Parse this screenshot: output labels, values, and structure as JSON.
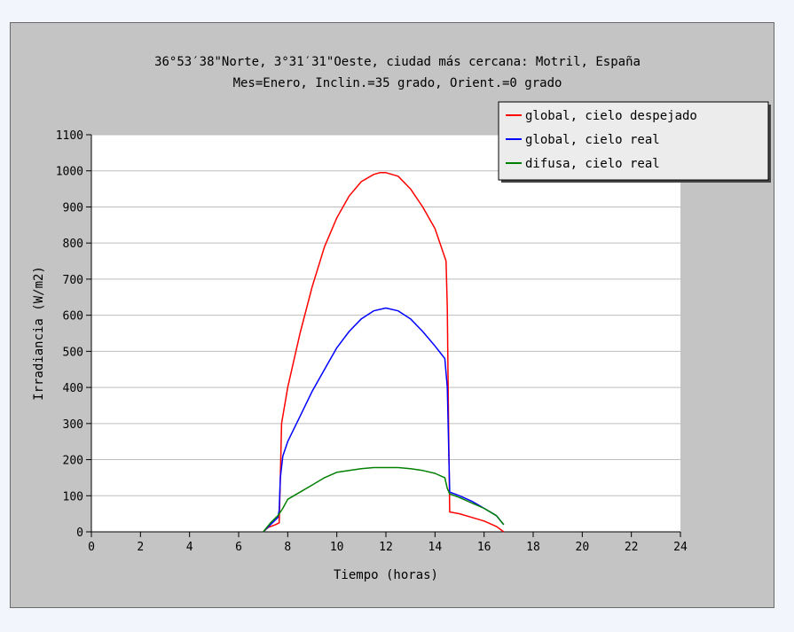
{
  "chart_data": {
    "type": "line",
    "title": "36°53′38\"Norte, 3°31′31\"Oeste, ciudad más cercana: Motril, España",
    "subtitle": "Mes=Enero, Inclin.=35 grado, Orient.=0 grado",
    "xlabel": "Tiempo (horas)",
    "ylabel": "Irradiancia (W/m2)",
    "xlim": [
      0,
      24
    ],
    "ylim": [
      0,
      1100
    ],
    "xticks": [
      0,
      2,
      4,
      6,
      8,
      10,
      12,
      14,
      16,
      18,
      20,
      22,
      24
    ],
    "yticks": [
      0,
      100,
      200,
      300,
      400,
      500,
      600,
      700,
      800,
      900,
      1000,
      1100
    ],
    "grid": true,
    "legend_position": "top-right",
    "series": [
      {
        "name": "global, cielo despejado",
        "color": "#ff0000",
        "x": [
          7.0,
          7.2,
          7.5,
          7.65,
          7.7,
          7.75,
          8.0,
          8.5,
          9.0,
          9.5,
          10.0,
          10.5,
          11.0,
          11.5,
          11.75,
          12.0,
          12.25,
          12.5,
          13.0,
          13.5,
          14.0,
          14.45,
          14.5,
          14.55,
          14.6,
          15.0,
          15.5,
          16.0,
          16.5,
          16.8
        ],
        "y": [
          0,
          12,
          20,
          25,
          150,
          300,
          400,
          550,
          680,
          790,
          870,
          930,
          970,
          990,
          995,
          995,
          990,
          985,
          950,
          900,
          840,
          750,
          620,
          300,
          55,
          50,
          40,
          30,
          15,
          0
        ]
      },
      {
        "name": "global, cielo real",
        "color": "#0000ff",
        "x": [
          7.0,
          7.3,
          7.6,
          7.65,
          7.7,
          7.8,
          8.0,
          8.5,
          9.0,
          9.5,
          10.0,
          10.5,
          11.0,
          11.5,
          12.0,
          12.5,
          13.0,
          13.5,
          14.0,
          14.4,
          14.5,
          14.55,
          14.6,
          15.0,
          15.5,
          16.0,
          16.5,
          16.8
        ],
        "y": [
          0,
          20,
          40,
          60,
          150,
          210,
          250,
          320,
          390,
          450,
          510,
          555,
          590,
          612,
          620,
          612,
          590,
          555,
          515,
          480,
          400,
          250,
          110,
          100,
          85,
          65,
          45,
          20
        ]
      },
      {
        "name": "difusa, cielo real",
        "color": "#008000",
        "x": [
          7.0,
          7.3,
          7.6,
          7.8,
          8.0,
          8.5,
          9.0,
          9.5,
          10.0,
          10.5,
          11.0,
          11.5,
          12.0,
          12.5,
          13.0,
          13.5,
          14.0,
          14.4,
          14.5,
          14.6,
          15.0,
          15.5,
          16.0,
          16.5,
          16.8
        ],
        "y": [
          0,
          25,
          45,
          65,
          90,
          110,
          130,
          150,
          165,
          170,
          175,
          178,
          178,
          178,
          175,
          170,
          162,
          150,
          120,
          105,
          95,
          80,
          65,
          45,
          20
        ]
      }
    ]
  }
}
